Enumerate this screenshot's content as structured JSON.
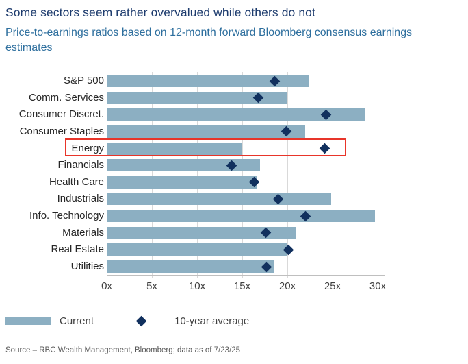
{
  "chart_data": {
    "type": "bar",
    "orientation": "horizontal",
    "title": "Some sectors seem rather overvalued while others do not",
    "subtitle": "Price-to-earnings ratios based on 12-month forward Bloomberg consensus earnings estimates",
    "categories": [
      "S&P 500",
      "Comm. Services",
      "Consumer Discret.",
      "Consumer Staples",
      "Energy",
      "Financials",
      "Health Care",
      "Industrials",
      "Info. Technology",
      "Materials",
      "Real Estate",
      "Utilities"
    ],
    "series": [
      {
        "name": "Current",
        "marker": "bar",
        "color": "#8cafc2",
        "values": [
          22.3,
          19.9,
          28.5,
          21.9,
          14.9,
          16.9,
          16.6,
          24.8,
          29.6,
          20.9,
          19.9,
          18.4
        ]
      },
      {
        "name": "10-year average",
        "marker": "diamond",
        "color": "#11305e",
        "values": [
          18.6,
          16.8,
          24.3,
          19.9,
          24.1,
          13.8,
          16.3,
          19.0,
          22.0,
          17.6,
          20.1,
          17.7
        ]
      }
    ],
    "x_ticks": [
      "0x",
      "5x",
      "10x",
      "15x",
      "20x",
      "25x",
      "30x"
    ],
    "x_tick_values": [
      0,
      5,
      10,
      15,
      20,
      25,
      30
    ],
    "xlim": [
      0,
      30.8
    ],
    "xlabel": "",
    "ylabel": "",
    "grid": "vertical",
    "legend_position": "bottom-left",
    "annotations": [
      {
        "type": "highlight-box",
        "category": "Energy",
        "color": "#e8352a"
      }
    ]
  },
  "footer": {
    "source": "Source – RBC Wealth Management, Bloomberg; data as of 7/23/25"
  }
}
